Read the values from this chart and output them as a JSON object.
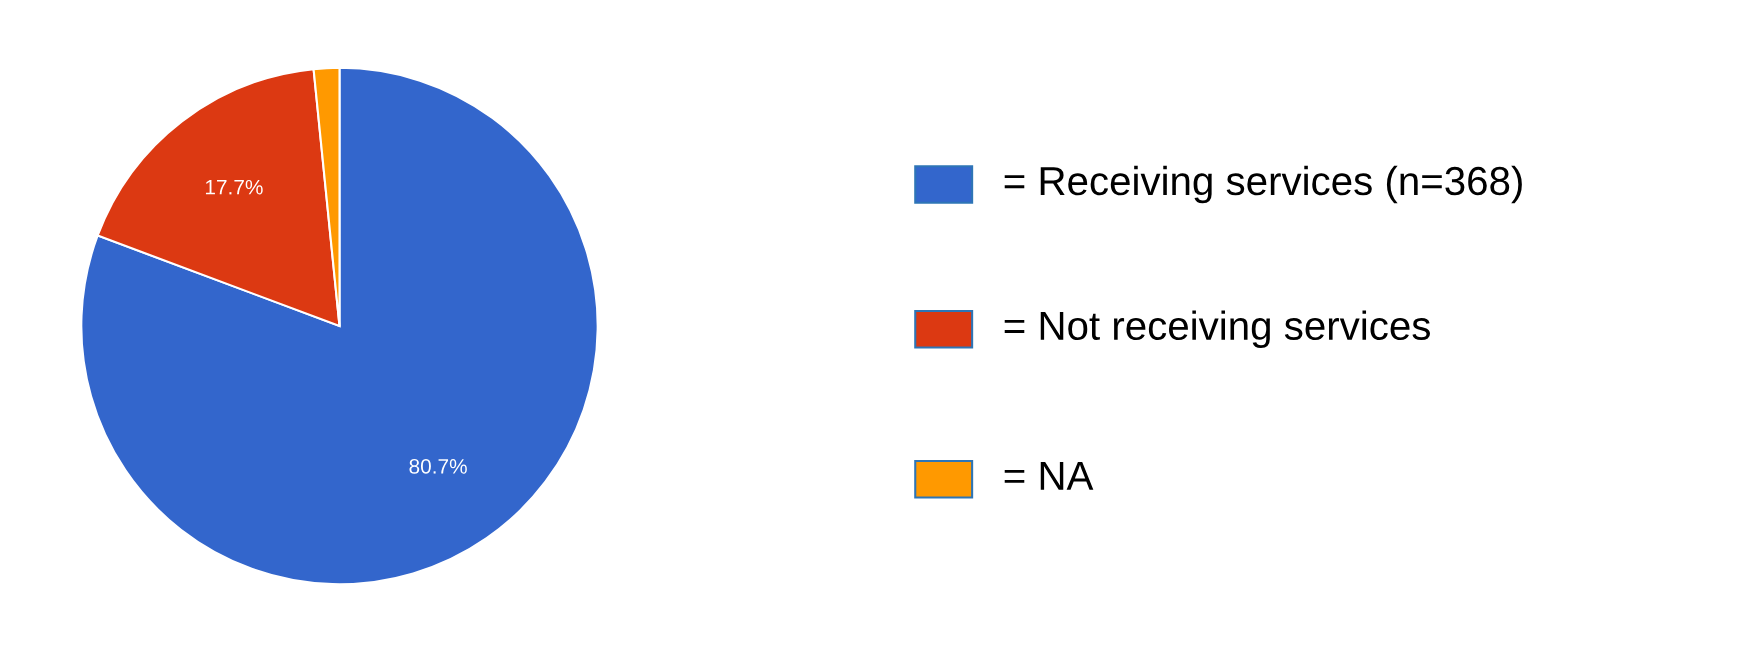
{
  "chart_data": {
    "type": "pie",
    "categories": [
      "= Receiving services (n=368)",
      "= Not receiving services",
      "= NA"
    ],
    "values": [
      80.7,
      17.7,
      1.6
    ],
    "colors": [
      "#3366cc",
      "#dc3912",
      "#ff9900"
    ],
    "value_labels": [
      "80.7%",
      "17.7%",
      null
    ],
    "legend": "right"
  }
}
